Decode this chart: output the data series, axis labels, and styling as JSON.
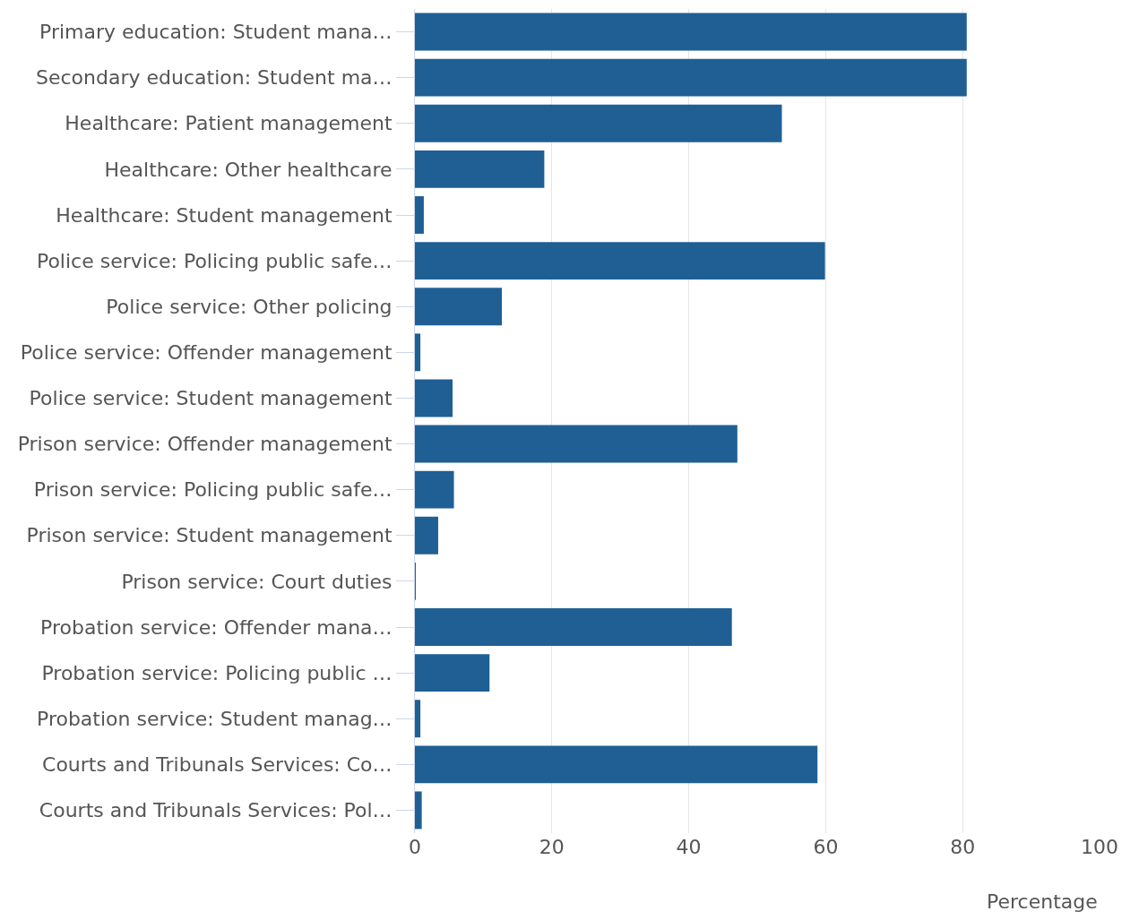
{
  "chart_data": {
    "type": "bar",
    "orientation": "horizontal",
    "xlabel": "Percentage",
    "categories": [
      "Primary education: Student mana…",
      "Secondary education: Student ma…",
      "Healthcare: Patient management",
      "Healthcare: Other healthcare",
      "Healthcare: Student management",
      "Police service: Policing public safe…",
      "Police service: Other policing",
      "Police service: Offender management",
      "Police service: Student management",
      "Prison service: Offender management",
      "Prison service: Policing public safe…",
      "Prison service: Student management",
      "Prison service: Court duties",
      "Probation service: Offender mana…",
      "Probation service: Policing public …",
      "Probation service: Student manag…",
      "Courts and Tribunals Services: Co…",
      "Courts and Tribunals Services: Pol…"
    ],
    "values": [
      80.6,
      80.6,
      53.6,
      18.9,
      1.3,
      59.9,
      12.7,
      0.8,
      5.5,
      47.1,
      5.7,
      3.4,
      0.1,
      46.3,
      10.9,
      0.8,
      58.8,
      1.0
    ],
    "color": "#1f5f94",
    "xlim": [
      0,
      100
    ],
    "xticks": [
      0,
      20,
      40,
      60,
      80,
      100
    ],
    "grid": "x"
  }
}
